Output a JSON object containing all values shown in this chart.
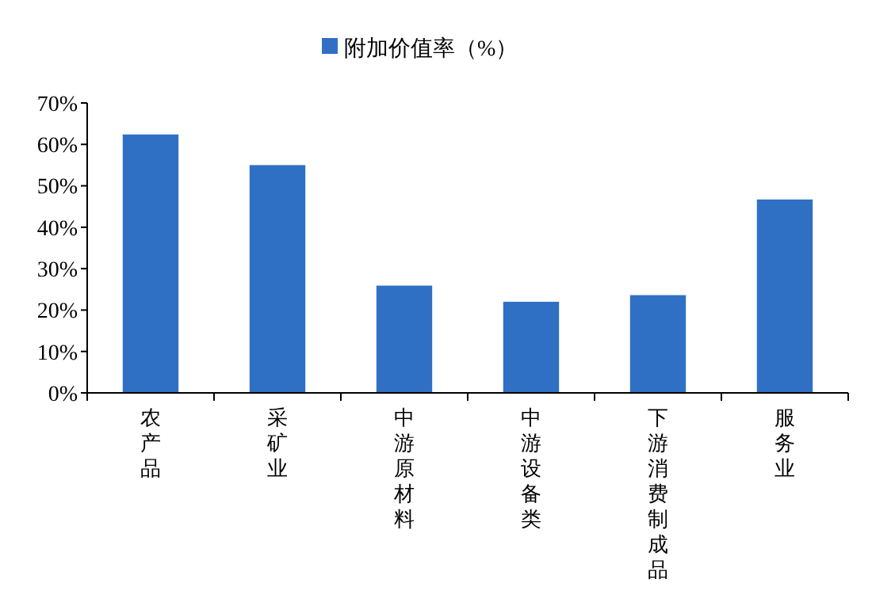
{
  "chart_data": {
    "type": "bar",
    "categories": [
      "农产品",
      "采矿业",
      "中游原材料",
      "中游设备类",
      "下游消费制成品",
      "服务业"
    ],
    "series": [
      {
        "name": "附加价值率（%）",
        "color": "#3070c4",
        "values": [
          62.4,
          55,
          25.9,
          22,
          23.6,
          46.7
        ]
      }
    ],
    "ylim": [
      0,
      70
    ],
    "yticks": [
      {
        "value": 0,
        "label": "0%"
      },
      {
        "value": 10,
        "label": "10%"
      },
      {
        "value": 20,
        "label": "20%"
      },
      {
        "value": 30,
        "label": "30%"
      },
      {
        "value": 40,
        "label": "40%"
      },
      {
        "value": 50,
        "label": "50%"
      },
      {
        "value": 60,
        "label": "60%"
      },
      {
        "value": 70,
        "label": "70%"
      }
    ],
    "legend": "top",
    "grid": false
  }
}
